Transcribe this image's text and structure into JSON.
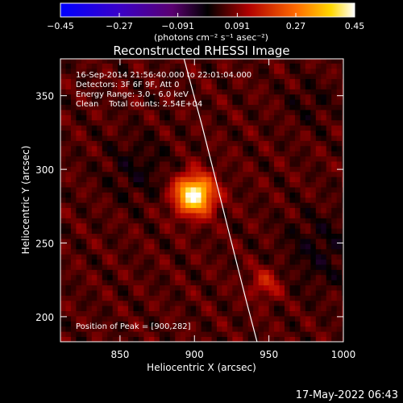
{
  "chart_data": {
    "type": "heatmap",
    "title": "Reconstructed RHESSI Image",
    "xlabel": "Heliocentric X (arcsec)",
    "ylabel": "Heliocentric Y (arcsec)",
    "xlim": [
      810,
      1000
    ],
    "ylim": [
      183,
      375
    ],
    "x_ticks": [
      850,
      900,
      950,
      1000
    ],
    "y_ticks": [
      200,
      250,
      300,
      350
    ],
    "colorbar": {
      "ticks": [
        -0.45,
        -0.27,
        -0.091,
        0.091,
        0.27,
        0.45
      ],
      "tick_labels": [
        "−0.45",
        "−0.27",
        "−0.091",
        "0.091",
        "0.27",
        "0.45"
      ],
      "unit_label": "(photons cm⁻² s⁻¹ asec⁻²)",
      "range": [
        -0.45,
        0.45
      ]
    },
    "annotations": [
      "16-Sep-2014 21:56:40.000 to 22:01:04.000",
      "Detectors: 3F 6F 9F, Att 0",
      "Energy Range: 3.0 - 6.0 keV",
      "Clean    Total counts: 2.54E+04"
    ],
    "peak_label": "Position of Peak = [900,282]",
    "peak": [
      900,
      282
    ],
    "sources": [
      {
        "x": 900,
        "y": 283,
        "value": 0.45
      },
      {
        "x": 948,
        "y": 223,
        "value": 0.14
      }
    ],
    "limb_curve": [
      [
        893,
        375
      ],
      [
        905,
        330
      ],
      [
        915,
        290
      ],
      [
        925,
        250
      ],
      [
        935,
        210
      ],
      [
        942,
        183
      ]
    ],
    "footer_date": "17-May-2022 06:43"
  }
}
